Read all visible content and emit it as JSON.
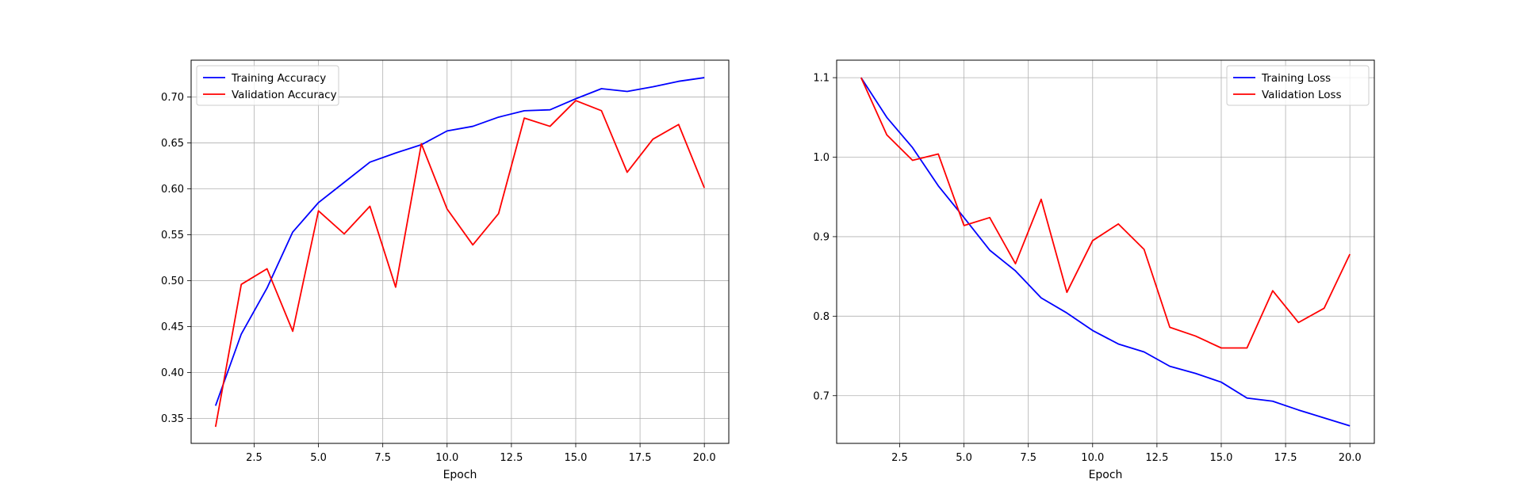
{
  "chart_data": [
    {
      "type": "line",
      "title": "",
      "xlabel": "Epoch",
      "ylabel": "",
      "x": [
        1,
        2,
        3,
        4,
        5,
        6,
        7,
        8,
        9,
        10,
        11,
        12,
        13,
        14,
        15,
        16,
        17,
        18,
        19,
        20
      ],
      "xlim": [
        0.05,
        20.95
      ],
      "ylim": [
        0.323,
        0.74
      ],
      "xticks": [
        2.5,
        5.0,
        7.5,
        10.0,
        12.5,
        15.0,
        17.5,
        20.0
      ],
      "xtick_labels": [
        "2.5",
        "5.0",
        "7.5",
        "10.0",
        "12.5",
        "15.0",
        "17.5",
        "20.0"
      ],
      "yticks": [
        0.35,
        0.4,
        0.45,
        0.5,
        0.55,
        0.6,
        0.65,
        0.7
      ],
      "ytick_labels": [
        "0.35",
        "0.40",
        "0.45",
        "0.50",
        "0.55",
        "0.60",
        "0.65",
        "0.70"
      ],
      "grid": true,
      "legend_position": "top-left",
      "series": [
        {
          "name": "Training Accuracy",
          "color": "#0000ff",
          "values": [
            0.364,
            0.442,
            0.492,
            0.553,
            0.585,
            0.607,
            0.629,
            0.639,
            0.648,
            0.663,
            0.668,
            0.678,
            0.685,
            0.686,
            0.698,
            0.709,
            0.706,
            0.711,
            0.717,
            0.721
          ]
        },
        {
          "name": "Validation Accuracy",
          "color": "#ff0000",
          "values": [
            0.341,
            0.496,
            0.513,
            0.445,
            0.576,
            0.551,
            0.581,
            0.493,
            0.649,
            0.578,
            0.539,
            0.573,
            0.677,
            0.668,
            0.696,
            0.685,
            0.618,
            0.654,
            0.67,
            0.601
          ]
        }
      ]
    },
    {
      "type": "line",
      "title": "",
      "xlabel": "Epoch",
      "ylabel": "",
      "x": [
        1,
        2,
        3,
        4,
        5,
        6,
        7,
        8,
        9,
        10,
        11,
        12,
        13,
        14,
        15,
        16,
        17,
        18,
        19,
        20
      ],
      "xlim": [
        0.05,
        20.95
      ],
      "ylim": [
        0.64,
        1.122
      ],
      "xticks": [
        2.5,
        5.0,
        7.5,
        10.0,
        12.5,
        15.0,
        17.5,
        20.0
      ],
      "xtick_labels": [
        "2.5",
        "5.0",
        "7.5",
        "10.0",
        "12.5",
        "15.0",
        "17.5",
        "20.0"
      ],
      "yticks": [
        0.7,
        0.8,
        0.9,
        1.0,
        1.1
      ],
      "ytick_labels": [
        "0.7",
        "0.8",
        "0.9",
        "1.0",
        "1.1"
      ],
      "grid": true,
      "legend_position": "top-right",
      "series": [
        {
          "name": "Training Loss",
          "color": "#0000ff",
          "values": [
            1.1,
            1.05,
            1.012,
            0.964,
            0.924,
            0.883,
            0.857,
            0.823,
            0.804,
            0.782,
            0.765,
            0.755,
            0.737,
            0.728,
            0.717,
            0.697,
            0.693,
            0.682,
            0.672,
            0.662
          ]
        },
        {
          "name": "Validation Loss",
          "color": "#ff0000",
          "values": [
            1.1,
            1.028,
            0.996,
            1.004,
            0.914,
            0.924,
            0.866,
            0.947,
            0.83,
            0.895,
            0.916,
            0.884,
            0.786,
            0.775,
            0.76,
            0.76,
            0.832,
            0.792,
            0.81,
            0.878
          ]
        }
      ]
    }
  ]
}
